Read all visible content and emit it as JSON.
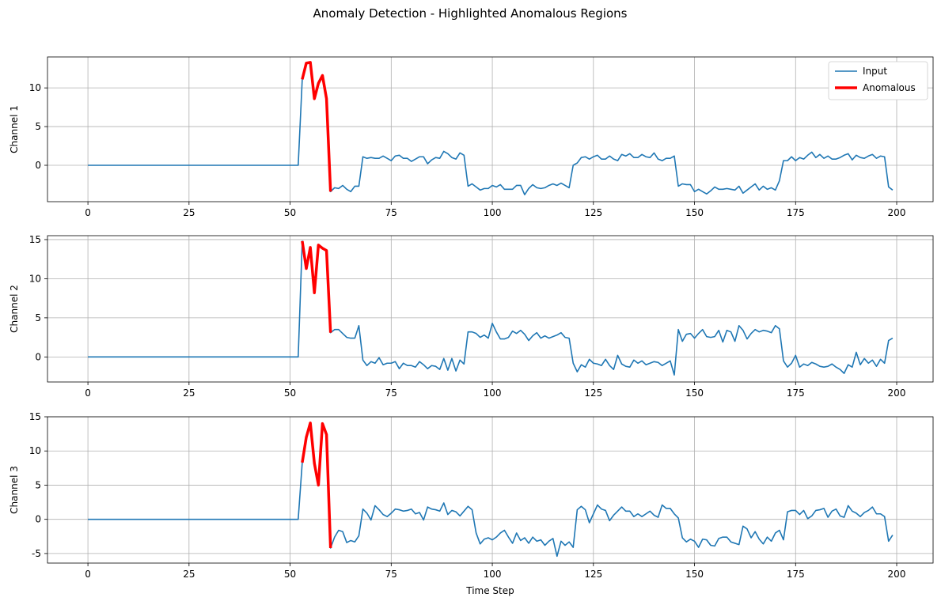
{
  "title": "Anomaly Detection - Highlighted Anomalous Regions",
  "colors": {
    "input": "#1f77b4",
    "anomalous": "#ff0000",
    "grid": "#b0b0b0",
    "axis": "#000000"
  },
  "legend": {
    "placement": "top-right",
    "entries": [
      "Input",
      "Anomalous"
    ]
  },
  "chart_data": [
    {
      "type": "line",
      "ylabel": "Channel 1",
      "xlabel": "",
      "xlim": [
        -10,
        209
      ],
      "ylim": [
        -4.7,
        14.0
      ],
      "xticks": [
        0,
        25,
        50,
        75,
        100,
        125,
        150,
        175,
        200
      ],
      "yticks": [
        0,
        5,
        10
      ],
      "grid": true,
      "show_legend": true,
      "anomaly_range": [
        53,
        60
      ],
      "series": [
        {
          "name": "Input",
          "x_start": 0,
          "values": [
            0,
            0,
            0,
            0,
            0,
            0,
            0,
            0,
            0,
            0,
            0,
            0,
            0,
            0,
            0,
            0,
            0,
            0,
            0,
            0,
            0,
            0,
            0,
            0,
            0,
            0,
            0,
            0,
            0,
            0,
            0,
            0,
            0,
            0,
            0,
            0,
            0,
            0,
            0,
            0,
            0,
            0,
            0,
            0,
            0,
            0,
            0,
            0,
            0,
            0,
            0,
            0,
            0,
            11.1,
            13.2,
            13.3,
            8.6,
            10.6,
            11.6,
            8.6,
            -3.4,
            -2.9,
            -3.0,
            -2.6,
            -3.1,
            -3.4,
            -2.7,
            -2.7,
            1.1,
            0.9,
            1.0,
            0.9,
            0.9,
            1.2,
            0.9,
            0.6,
            1.2,
            1.3,
            0.9,
            0.9,
            0.5,
            0.8,
            1.1,
            1.1,
            0.2,
            0.7,
            1.0,
            0.9,
            1.8,
            1.5,
            1.0,
            0.8,
            1.6,
            1.3,
            -2.7,
            -2.4,
            -2.8,
            -3.2,
            -3.0,
            -3.0,
            -2.6,
            -2.8,
            -2.5,
            -3.1,
            -3.1,
            -3.1,
            -2.6,
            -2.6,
            -3.8,
            -3.0,
            -2.5,
            -2.9,
            -3.0,
            -2.9,
            -2.6,
            -2.4,
            -2.6,
            -2.3,
            -2.6,
            -2.9,
            0.0,
            0.3,
            1.0,
            1.1,
            0.8,
            1.1,
            1.3,
            0.8,
            0.8,
            1.2,
            0.8,
            0.6,
            1.4,
            1.2,
            1.5,
            1.0,
            1.0,
            1.4,
            1.1,
            1.0,
            1.6,
            0.8,
            0.6,
            0.9,
            0.9,
            1.2,
            -2.7,
            -2.4,
            -2.5,
            -2.5,
            -3.4,
            -3.1,
            -3.4,
            -3.7,
            -3.3,
            -2.8,
            -3.1,
            -3.1,
            -3.0,
            -3.1,
            -3.2,
            -2.7,
            -3.6,
            -3.2,
            -2.8,
            -2.4,
            -3.2,
            -2.7,
            -3.1,
            -2.9,
            -3.2,
            -2.0,
            0.6,
            0.6,
            1.1,
            0.6,
            1.0,
            0.8,
            1.3,
            1.7,
            1.0,
            1.4,
            0.9,
            1.2,
            0.8,
            0.8,
            1.0,
            1.3,
            1.5,
            0.7,
            1.3,
            1.0,
            0.9,
            1.2,
            1.4,
            0.9,
            1.2,
            1.1,
            -2.8,
            -3.2
          ]
        }
      ]
    },
    {
      "type": "line",
      "ylabel": "Channel 2",
      "xlabel": "",
      "xlim": [
        -10,
        209
      ],
      "ylim": [
        -3.2,
        15.5
      ],
      "xticks": [
        0,
        25,
        50,
        75,
        100,
        125,
        150,
        175,
        200
      ],
      "yticks": [
        0,
        5,
        10,
        15
      ],
      "grid": true,
      "show_legend": false,
      "anomaly_range": [
        53,
        60
      ],
      "series": [
        {
          "name": "Input",
          "x_start": 0,
          "values": [
            0,
            0,
            0,
            0,
            0,
            0,
            0,
            0,
            0,
            0,
            0,
            0,
            0,
            0,
            0,
            0,
            0,
            0,
            0,
            0,
            0,
            0,
            0,
            0,
            0,
            0,
            0,
            0,
            0,
            0,
            0,
            0,
            0,
            0,
            0,
            0,
            0,
            0,
            0,
            0,
            0,
            0,
            0,
            0,
            0,
            0,
            0,
            0,
            0,
            0,
            0,
            0,
            0,
            14.8,
            11.3,
            14.0,
            8.2,
            14.3,
            13.9,
            13.6,
            3.1,
            3.5,
            3.5,
            3.0,
            2.5,
            2.4,
            2.4,
            4.0,
            -0.4,
            -1.1,
            -0.6,
            -0.8,
            -0.1,
            -1.0,
            -0.8,
            -0.8,
            -0.6,
            -1.5,
            -0.8,
            -1.1,
            -1.1,
            -1.3,
            -0.6,
            -1.0,
            -1.5,
            -1.1,
            -1.2,
            -1.6,
            -0.2,
            -1.7,
            -0.2,
            -1.8,
            -0.4,
            -0.9,
            3.2,
            3.2,
            3.0,
            2.5,
            2.8,
            2.4,
            4.3,
            3.2,
            2.3,
            2.3,
            2.5,
            3.3,
            3.0,
            3.4,
            2.9,
            2.1,
            2.7,
            3.1,
            2.4,
            2.7,
            2.4,
            2.6,
            2.8,
            3.1,
            2.5,
            2.4,
            -0.8,
            -1.9,
            -1.0,
            -1.3,
            -0.3,
            -0.8,
            -0.9,
            -1.1,
            -0.3,
            -1.1,
            -1.6,
            0.2,
            -0.9,
            -1.2,
            -1.3,
            -0.4,
            -0.8,
            -0.5,
            -1.0,
            -0.8,
            -0.6,
            -0.7,
            -1.1,
            -0.8,
            -0.5,
            -2.3,
            3.5,
            2.0,
            2.9,
            3.0,
            2.4,
            3.0,
            3.5,
            2.6,
            2.5,
            2.6,
            3.4,
            1.9,
            3.4,
            3.2,
            2.0,
            4.0,
            3.4,
            2.3,
            3.0,
            3.5,
            3.2,
            3.4,
            3.3,
            3.1,
            4.0,
            3.6,
            -0.5,
            -1.3,
            -0.8,
            0.2,
            -1.3,
            -0.9,
            -1.1,
            -0.7,
            -0.9,
            -1.2,
            -1.3,
            -1.2,
            -0.9,
            -1.3,
            -1.6,
            -2.1,
            -1.0,
            -1.3,
            0.6,
            -1.0,
            -0.2,
            -0.8,
            -0.4,
            -1.2,
            -0.3,
            -0.8,
            2.1,
            2.4
          ]
        }
      ]
    },
    {
      "type": "line",
      "ylabel": "Channel 3",
      "xlabel": "Time Step",
      "xlim": [
        -10,
        209
      ],
      "ylim": [
        -6.4,
        15.0
      ],
      "xticks": [
        0,
        25,
        50,
        75,
        100,
        125,
        150,
        175,
        200
      ],
      "yticks": [
        -5,
        0,
        5,
        10,
        15
      ],
      "grid": true,
      "show_legend": false,
      "anomaly_range": [
        53,
        60
      ],
      "series": [
        {
          "name": "Input",
          "x_start": 0,
          "values": [
            0,
            0,
            0,
            0,
            0,
            0,
            0,
            0,
            0,
            0,
            0,
            0,
            0,
            0,
            0,
            0,
            0,
            0,
            0,
            0,
            0,
            0,
            0,
            0,
            0,
            0,
            0,
            0,
            0,
            0,
            0,
            0,
            0,
            0,
            0,
            0,
            0,
            0,
            0,
            0,
            0,
            0,
            0,
            0,
            0,
            0,
            0,
            0,
            0,
            0,
            0,
            0,
            0,
            8.3,
            12.0,
            14.1,
            8.2,
            5.0,
            14.0,
            12.4,
            -4.2,
            -2.6,
            -1.6,
            -1.8,
            -3.4,
            -3.1,
            -3.3,
            -2.4,
            1.5,
            0.9,
            -0.1,
            2.0,
            1.4,
            0.7,
            0.4,
            0.9,
            1.5,
            1.4,
            1.2,
            1.3,
            1.5,
            0.8,
            1.0,
            -0.1,
            1.8,
            1.5,
            1.4,
            1.2,
            2.4,
            0.7,
            1.3,
            1.1,
            0.5,
            1.2,
            1.9,
            1.4,
            -2.0,
            -3.6,
            -2.9,
            -2.7,
            -3.0,
            -2.6,
            -2.0,
            -1.6,
            -2.6,
            -3.5,
            -2.0,
            -3.1,
            -2.7,
            -3.5,
            -2.6,
            -3.2,
            -3.0,
            -3.8,
            -3.2,
            -2.8,
            -5.4,
            -3.2,
            -3.8,
            -3.3,
            -4.1,
            1.4,
            1.9,
            1.4,
            -0.5,
            0.8,
            2.1,
            1.5,
            1.3,
            -0.2,
            0.6,
            1.2,
            1.8,
            1.2,
            1.2,
            0.4,
            0.8,
            0.4,
            0.8,
            1.2,
            0.6,
            0.3,
            2.1,
            1.6,
            1.6,
            0.8,
            0.2,
            -2.7,
            -3.3,
            -2.9,
            -3.2,
            -4.1,
            -2.9,
            -3.0,
            -3.8,
            -3.9,
            -2.8,
            -2.6,
            -2.6,
            -3.3,
            -3.5,
            -3.7,
            -1.0,
            -1.4,
            -2.7,
            -1.8,
            -2.9,
            -3.6,
            -2.6,
            -3.2,
            -2.0,
            -1.6,
            -3.0,
            1.1,
            1.3,
            1.3,
            0.7,
            1.3,
            0.1,
            0.5,
            1.3,
            1.4,
            1.6,
            0.3,
            1.2,
            1.5,
            0.5,
            0.3,
            2.0,
            1.2,
            0.9,
            0.4,
            1.0,
            1.3,
            1.8,
            0.8,
            0.8,
            0.4,
            -3.2,
            -2.3
          ]
        }
      ]
    }
  ]
}
